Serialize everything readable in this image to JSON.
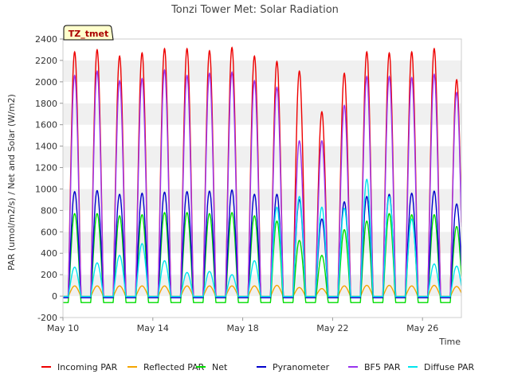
{
  "chart_data": {
    "type": "line",
    "title": "Tonzi Tower Met: Solar Radiation",
    "xlabel": "Time",
    "ylabel": "PAR (umol/m2/s) / Net and Solar (W/m2)",
    "badge": "TZ_tmet",
    "xlim": [
      "2024-05-10",
      "2024-05-27 20:00"
    ],
    "ylim": [
      -200,
      2400
    ],
    "x_ticks": [
      "May 10",
      "May 14",
      "May 18",
      "May 22",
      "May 26"
    ],
    "y_ticks": [
      -200,
      0,
      200,
      400,
      600,
      800,
      1000,
      1200,
      1400,
      1600,
      1800,
      2000,
      2200,
      2400
    ],
    "grid": "horizontal bands",
    "legend_position": "bottom",
    "days": [
      "May 10",
      "May 11",
      "May 12",
      "May 13",
      "May 14",
      "May 15",
      "May 16",
      "May 17",
      "May 18",
      "May 19",
      "May 20",
      "May 21",
      "May 22",
      "May 23",
      "May 24",
      "May 25",
      "May 26",
      "May 27"
    ],
    "series": [
      {
        "name": "Incoming PAR",
        "color": "#ee0000",
        "night": -5,
        "daily_peak": [
          2280,
          2300,
          2240,
          2270,
          2310,
          2310,
          2290,
          2320,
          2240,
          2190,
          2100,
          1720,
          2080,
          2280,
          2270,
          2280,
          2310,
          2020
        ]
      },
      {
        "name": "Reflected PAR",
        "color": "#f5a500",
        "night": -2,
        "daily_peak": [
          95,
          95,
          95,
          95,
          95,
          95,
          95,
          95,
          95,
          100,
          80,
          70,
          95,
          100,
          100,
          95,
          100,
          90
        ]
      },
      {
        "name": "Net",
        "color": "#00dd00",
        "night": -60,
        "daily_peak": [
          770,
          770,
          750,
          760,
          780,
          780,
          770,
          780,
          750,
          700,
          520,
          380,
          620,
          700,
          770,
          760,
          760,
          650
        ]
      },
      {
        "name": "Pyranometer",
        "color": "#0000cc",
        "night": -15,
        "daily_peak": [
          975,
          985,
          950,
          960,
          970,
          975,
          980,
          990,
          950,
          950,
          900,
          720,
          880,
          930,
          950,
          960,
          980,
          860
        ]
      },
      {
        "name": "BF5 PAR",
        "color": "#9933ee",
        "night": -5,
        "daily_peak": [
          2060,
          2100,
          2010,
          2030,
          2110,
          2060,
          2080,
          2090,
          2010,
          1950,
          1450,
          1450,
          1780,
          2050,
          2050,
          2040,
          2070,
          1900
        ]
      },
      {
        "name": "Diffuse PAR",
        "color": "#00e5ee",
        "night": -3,
        "daily_peak": [
          270,
          310,
          380,
          490,
          330,
          220,
          230,
          200,
          330,
          830,
          930,
          830,
          820,
          1090,
          930,
          720,
          300,
          280
        ]
      }
    ]
  }
}
